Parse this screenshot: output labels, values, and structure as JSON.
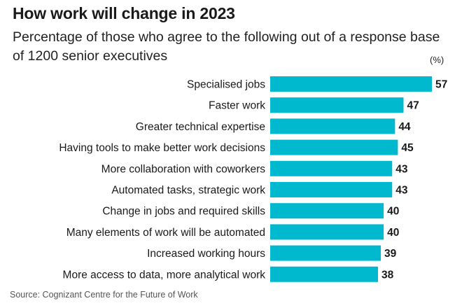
{
  "chart_data": {
    "type": "bar",
    "orientation": "horizontal",
    "title": "How work will change in 2023",
    "subtitle": "Percentage of those who agree to the following out of a response base of 1200 senior executives",
    "unit": "(%)",
    "categories": [
      "Specialised jobs",
      "Faster work",
      "Greater technical expertise",
      "Having tools to make better work decisions",
      "More collaboration with coworkers",
      "Automated tasks, strategic work",
      "Change in jobs and required skills",
      "Many elements of work will be automated",
      "Increased working hours",
      "More access to data, more analytical work"
    ],
    "values": [
      57,
      47,
      44,
      45,
      43,
      43,
      40,
      40,
      39,
      38
    ],
    "bar_color": "#00b9cf",
    "grid": false,
    "source": "Source: Cognizant Centre for the Future of Work"
  }
}
